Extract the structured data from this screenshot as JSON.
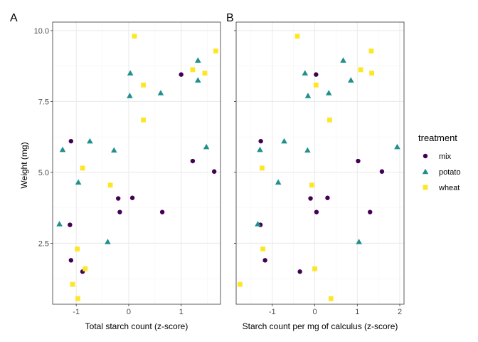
{
  "chart_data": [
    {
      "type": "scatter",
      "tag": "A",
      "xlabel": "Total starch count (z-score)",
      "ylabel": "Weight (mg)",
      "xlim": [
        -1.45,
        1.75
      ],
      "ylim": [
        0.35,
        10.3
      ],
      "xticks": [
        -1,
        0,
        1
      ],
      "yticks": [
        2.5,
        5.0,
        7.5,
        10.0
      ],
      "xtick_labels": [
        "-1",
        "0",
        "1"
      ],
      "ytick_labels": [
        "2.5",
        "5.0",
        "7.5",
        "10.0"
      ],
      "grid": true,
      "series": [
        {
          "name": "mix",
          "points": [
            [
              1.0,
              8.45
            ],
            [
              -1.1,
              6.1
            ],
            [
              1.22,
              5.4
            ],
            [
              1.63,
              5.03
            ],
            [
              -0.2,
              4.08
            ],
            [
              0.07,
              4.1
            ],
            [
              -0.17,
              3.6
            ],
            [
              0.64,
              3.6
            ],
            [
              -1.12,
              3.15
            ],
            [
              -1.1,
              1.9
            ],
            [
              -0.88,
              1.5
            ]
          ]
        },
        {
          "name": "potato",
          "points": [
            [
              1.32,
              8.95
            ],
            [
              0.03,
              8.5
            ],
            [
              1.32,
              8.25
            ],
            [
              0.61,
              7.8
            ],
            [
              0.02,
              7.7
            ],
            [
              -0.74,
              6.1
            ],
            [
              -1.26,
              5.8
            ],
            [
              -0.28,
              5.78
            ],
            [
              1.48,
              5.9
            ],
            [
              -0.96,
              4.65
            ],
            [
              -1.32,
              3.18
            ],
            [
              -0.4,
              2.55
            ]
          ]
        },
        {
          "name": "wheat",
          "points": [
            [
              0.11,
              9.8
            ],
            [
              1.66,
              9.28
            ],
            [
              1.22,
              8.62
            ],
            [
              1.45,
              8.5
            ],
            [
              0.28,
              8.08
            ],
            [
              0.28,
              6.85
            ],
            [
              -0.88,
              5.15
            ],
            [
              -0.35,
              4.55
            ],
            [
              -0.98,
              2.3
            ],
            [
              -0.83,
              1.6
            ],
            [
              -1.07,
              1.05
            ],
            [
              -0.97,
              0.55
            ]
          ]
        }
      ]
    },
    {
      "type": "scatter",
      "tag": "B",
      "xlabel": "Starch count per mg of calculus (z-score)",
      "ylabel": "",
      "xlim": [
        -1.85,
        2.1
      ],
      "ylim": [
        0.35,
        10.3
      ],
      "xticks": [
        -1,
        0,
        1,
        2
      ],
      "yticks": [
        2.5,
        5.0,
        7.5,
        10.0
      ],
      "xtick_labels": [
        "-1",
        "0",
        "1",
        "2"
      ],
      "ytick_labels": [],
      "grid": true,
      "series": [
        {
          "name": "mix",
          "points": [
            [
              0.03,
              8.45
            ],
            [
              -1.27,
              6.1
            ],
            [
              1.02,
              5.4
            ],
            [
              1.58,
              5.03
            ],
            [
              -0.1,
              4.08
            ],
            [
              0.3,
              4.1
            ],
            [
              0.04,
              3.6
            ],
            [
              1.3,
              3.6
            ],
            [
              -1.28,
              3.15
            ],
            [
              -1.17,
              1.9
            ],
            [
              -0.35,
              1.5
            ]
          ]
        },
        {
          "name": "potato",
          "points": [
            [
              0.67,
              8.95
            ],
            [
              -0.23,
              8.5
            ],
            [
              0.85,
              8.25
            ],
            [
              0.33,
              7.8
            ],
            [
              -0.16,
              7.7
            ],
            [
              -0.72,
              6.1
            ],
            [
              -1.29,
              5.8
            ],
            [
              -0.17,
              5.78
            ],
            [
              1.94,
              5.9
            ],
            [
              -0.86,
              4.65
            ],
            [
              -1.34,
              3.18
            ],
            [
              1.04,
              2.55
            ]
          ]
        },
        {
          "name": "wheat",
          "points": [
            [
              -0.41,
              9.8
            ],
            [
              1.33,
              9.28
            ],
            [
              1.08,
              8.62
            ],
            [
              1.34,
              8.5
            ],
            [
              0.03,
              8.08
            ],
            [
              0.35,
              6.85
            ],
            [
              -1.24,
              5.15
            ],
            [
              -0.07,
              4.55
            ],
            [
              -1.22,
              2.3
            ],
            [
              0.0,
              1.6
            ],
            [
              -1.76,
              1.05
            ],
            [
              0.38,
              0.55
            ]
          ]
        }
      ]
    }
  ],
  "legend": {
    "title": "treatment",
    "placement": "right",
    "items": [
      {
        "name": "mix",
        "shape": "circle",
        "color": "#440154"
      },
      {
        "name": "potato",
        "shape": "triangle",
        "color": "#21908C"
      },
      {
        "name": "wheat",
        "shape": "square",
        "color": "#FDE725"
      }
    ]
  },
  "colors": {
    "mix": "#440154",
    "potato": "#21908C",
    "wheat": "#FDE725",
    "grid_major": "#ebebeb",
    "grid_minor": "#f5f5f5",
    "panel_border": "#333333"
  }
}
